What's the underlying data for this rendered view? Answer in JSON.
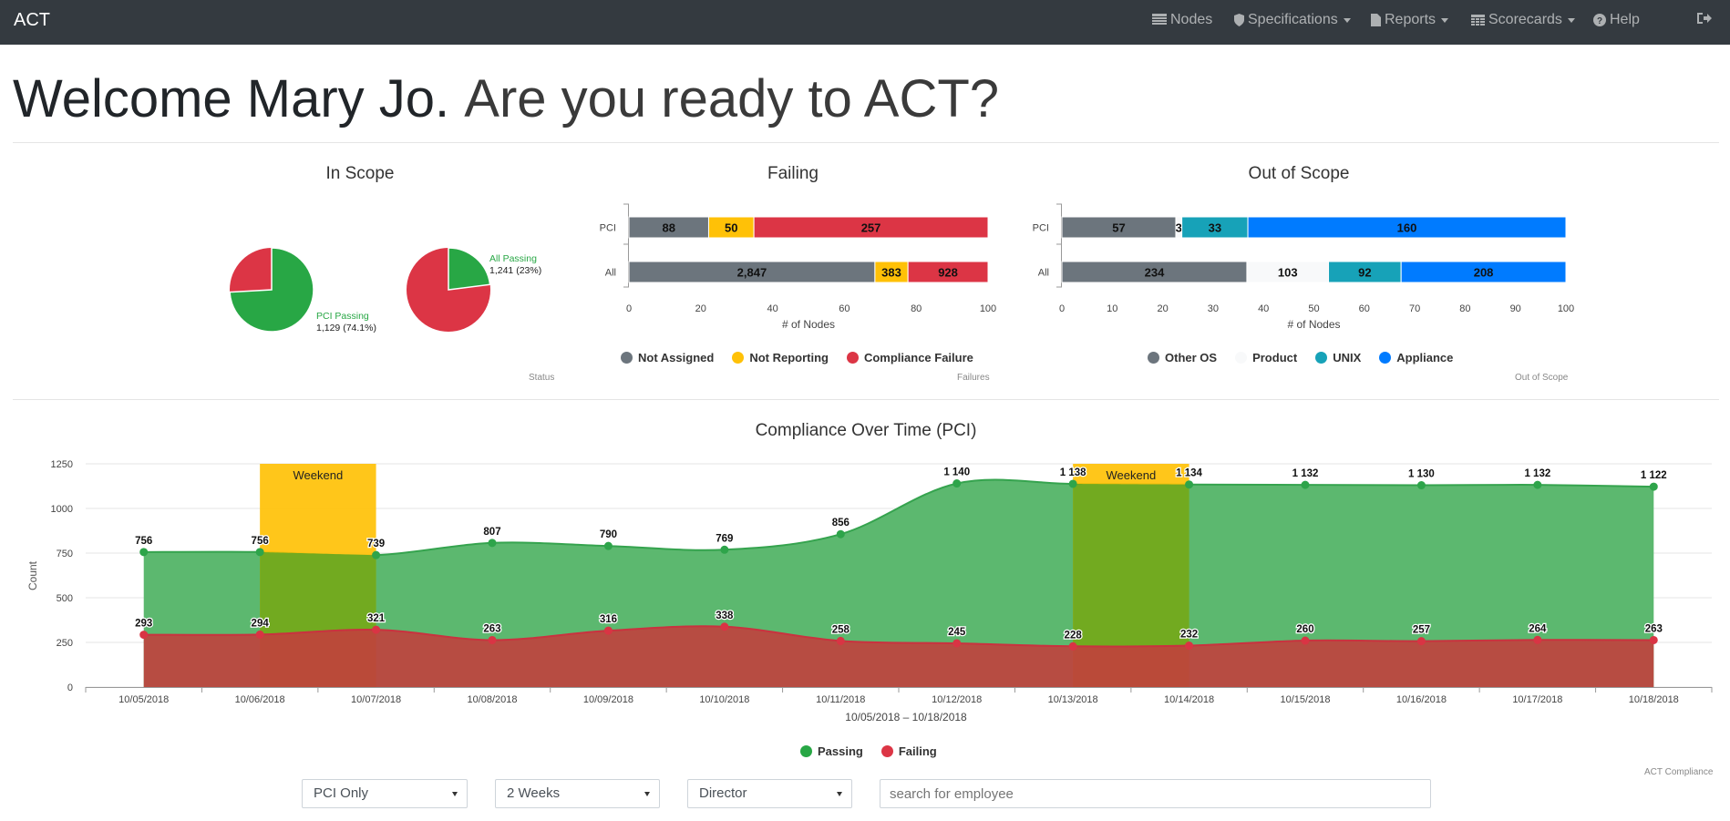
{
  "nav": {
    "brand": "ACT",
    "items": [
      {
        "label": "Nodes",
        "icon": "table-icon"
      },
      {
        "label": "Specifications",
        "icon": "shield-icon"
      },
      {
        "label": "Reports",
        "icon": "document-icon"
      },
      {
        "label": "Scorecards",
        "icon": "table-icon"
      },
      {
        "label": "Help",
        "icon": "question-circle-icon"
      }
    ],
    "logout_icon": "sign-out-icon"
  },
  "welcome": {
    "name": "Welcome Mary Jo.",
    "tagline": "Are you ready to ACT?"
  },
  "in_scope": {
    "title": "In Scope",
    "credit": "Status",
    "pie1": {
      "label": "PCI Passing",
      "value_text": "1,129 (74.1%)",
      "fraction": 0.741
    },
    "pie2": {
      "label": "All Passing",
      "value_text": "1,241 (23%)",
      "fraction": 0.23
    }
  },
  "failing": {
    "title": "Failing",
    "credit": "Failures",
    "xlabel": "# of Nodes",
    "ticks": [
      "0",
      "20",
      "40",
      "60",
      "80",
      "100"
    ],
    "rows": [
      {
        "label": "PCI",
        "segments": [
          {
            "value": "88",
            "pct": 22.2
          },
          {
            "value": "50",
            "pct": 12.6
          },
          {
            "value": "257",
            "pct": 65.2
          }
        ]
      },
      {
        "label": "All",
        "segments": [
          {
            "value": "2,847",
            "pct": 68.5
          },
          {
            "value": "383",
            "pct": 9.2
          },
          {
            "value": "928",
            "pct": 22.3
          }
        ]
      }
    ],
    "legend": [
      {
        "label": "Not Assigned",
        "color": "#6c757d"
      },
      {
        "label": "Not Reporting",
        "color": "#ffc107"
      },
      {
        "label": "Compliance Failure",
        "color": "#dc3545"
      }
    ]
  },
  "out_of_scope": {
    "title": "Out of Scope",
    "credit": "Out of Scope",
    "xlabel": "# of Nodes",
    "ticks": [
      "0",
      "10",
      "20",
      "30",
      "40",
      "50",
      "60",
      "70",
      "80",
      "90",
      "100"
    ],
    "rows": [
      {
        "label": "PCI",
        "segments": [
          {
            "value": "57",
            "pct": 22.6
          },
          {
            "value": "3",
            "pct": 1.2
          },
          {
            "value": "33",
            "pct": 13.1
          },
          {
            "value": "160",
            "pct": 63.1
          }
        ]
      },
      {
        "label": "All",
        "segments": [
          {
            "value": "234",
            "pct": 36.7
          },
          {
            "value": "103",
            "pct": 16.2
          },
          {
            "value": "92",
            "pct": 14.4
          },
          {
            "value": "208",
            "pct": 32.7
          }
        ]
      }
    ],
    "legend": [
      {
        "label": "Other OS",
        "color": "#6c757d"
      },
      {
        "label": "Product",
        "color": "#f8f9fa"
      },
      {
        "label": "UNIX",
        "color": "#17a2b8"
      },
      {
        "label": "Appliance",
        "color": "#007bff"
      }
    ]
  },
  "compliance": {
    "title": "Compliance Over Time (PCI)",
    "credit": "ACT Compliance",
    "ylabel": "Count",
    "xlabel": "10/05/2018 – 10/18/2018",
    "band_label": "Weekend",
    "weekend_bands": [
      [
        1,
        2
      ],
      [
        8,
        9
      ]
    ],
    "legend": [
      {
        "label": "Passing",
        "color": "#28a745"
      },
      {
        "label": "Failing",
        "color": "#dc3545"
      }
    ]
  },
  "chart_data": {
    "type": "area",
    "x": [
      "10/05/2018",
      "10/06/2018",
      "10/07/2018",
      "10/08/2018",
      "10/09/2018",
      "10/10/2018",
      "10/11/2018",
      "10/12/2018",
      "10/13/2018",
      "10/14/2018",
      "10/15/2018",
      "10/16/2018",
      "10/17/2018",
      "10/18/2018"
    ],
    "series": [
      {
        "name": "Passing",
        "values": [
          756,
          756,
          739,
          807,
          790,
          769,
          856,
          1140,
          1138,
          1134,
          1132,
          1130,
          1132,
          1122
        ],
        "labels": [
          "756",
          "756",
          "739",
          "807",
          "790",
          "769",
          "856",
          "1 140",
          "1 138",
          "1 134",
          "1 132",
          "1 130",
          "1 132",
          "1 122"
        ]
      },
      {
        "name": "Failing",
        "values": [
          293,
          294,
          321,
          263,
          316,
          338,
          258,
          245,
          228,
          232,
          260,
          257,
          264,
          263
        ],
        "labels": [
          "293",
          "294",
          "321",
          "263",
          "316",
          "338",
          "258",
          "245",
          "228",
          "232",
          "260",
          "257",
          "264",
          "263"
        ]
      }
    ],
    "yticks": [
      "0",
      "250",
      "500",
      "750",
      "1000",
      "1250"
    ],
    "ylim": [
      0,
      1250
    ],
    "grid": true,
    "legend": "bottom"
  },
  "filters": {
    "scope": "PCI Only",
    "range": "2 Weeks",
    "role": "Director",
    "search_placeholder": "search for employee"
  }
}
